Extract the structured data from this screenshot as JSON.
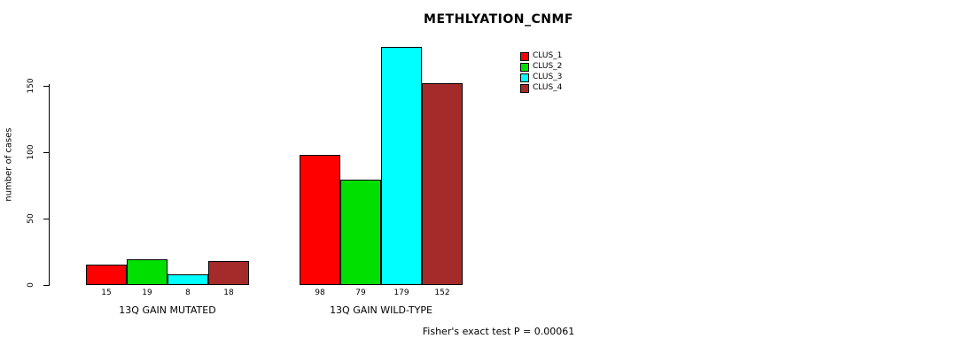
{
  "chart_data": {
    "type": "bar",
    "title": "METHLYATION_CNMF",
    "ylabel": "number of cases",
    "xlabel": "",
    "categories": [
      "13Q GAIN MUTATED",
      "13Q GAIN WILD-TYPE"
    ],
    "series": [
      {
        "name": "CLUS_1",
        "color": "#FF0000",
        "values": [
          15,
          98
        ]
      },
      {
        "name": "CLUS_2",
        "color": "#00E000",
        "values": [
          19,
          79
        ]
      },
      {
        "name": "CLUS_3",
        "color": "#00FFFF",
        "values": [
          8,
          179
        ]
      },
      {
        "name": "CLUS_4",
        "color": "#A52A2A",
        "values": [
          18,
          152
        ]
      }
    ],
    "yticks": [
      0,
      50,
      100,
      150
    ],
    "ylim": [
      0,
      179
    ],
    "bar_value_labels_shown": true,
    "grid": false,
    "legend_position": "top-right",
    "footnote": "Fisher's exact test P = 0.00061"
  }
}
